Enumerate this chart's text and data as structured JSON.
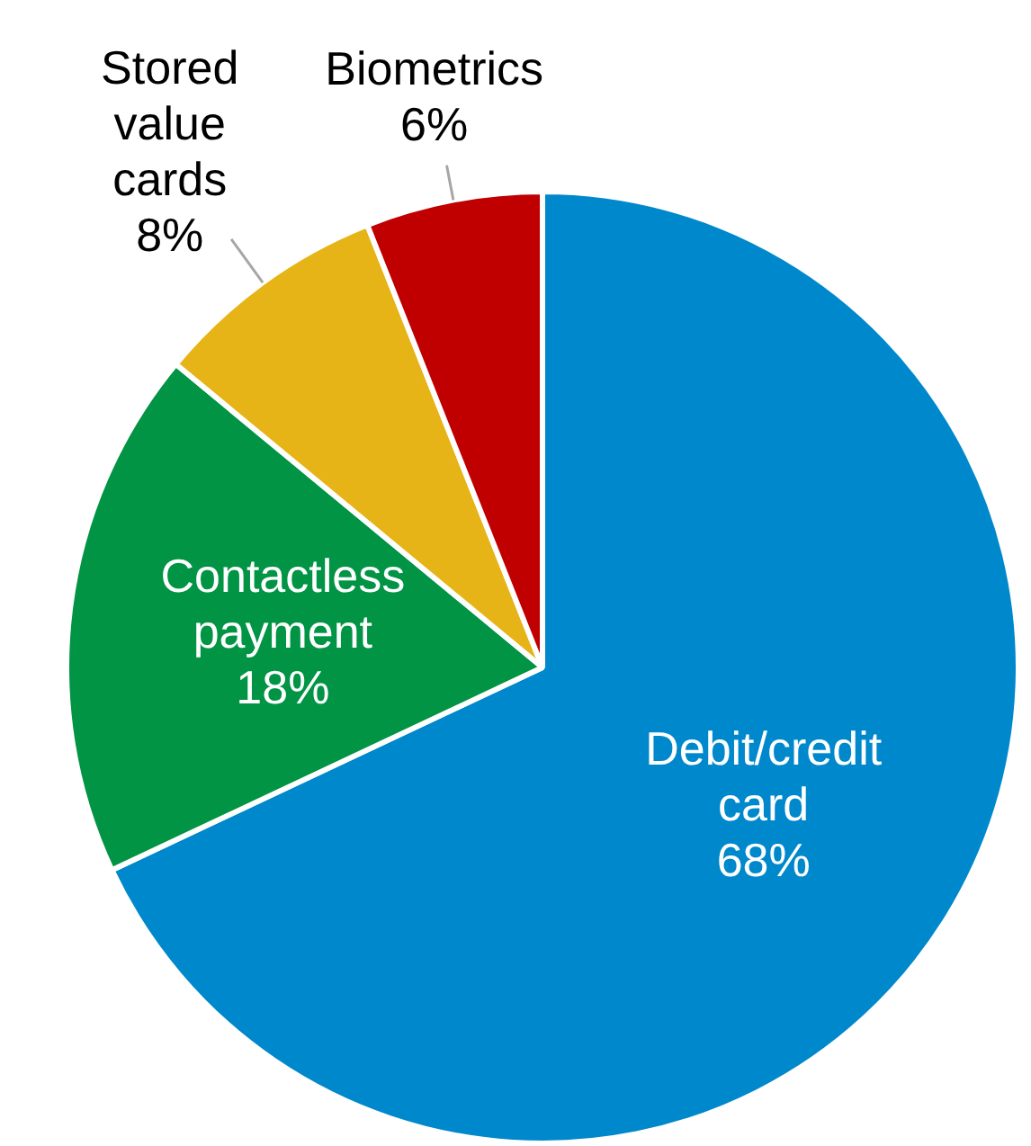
{
  "chart_data": {
    "type": "pie",
    "categories": [
      "Debit/credit card",
      "Contactless payment",
      "Stored value cards",
      "Biometrics"
    ],
    "values": [
      68,
      18,
      8,
      6
    ],
    "value_labels": [
      "68%",
      "18%",
      "8%",
      "6%"
    ],
    "colors": [
      "#0088cc",
      "#009444",
      "#e6b416",
      "#c00000"
    ],
    "legend": false
  }
}
